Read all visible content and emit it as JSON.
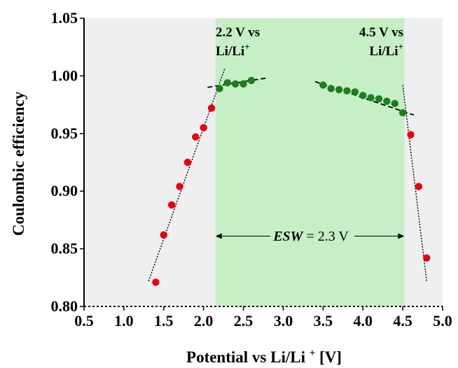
{
  "chart_data": {
    "type": "scatter",
    "xlabel": "Potential vs Li/Li⁺ [V]",
    "ylabel": "Coulombic efficiency",
    "xlim": [
      0.5,
      5.0
    ],
    "ylim": [
      0.8,
      1.05
    ],
    "xticks": [
      "0.5",
      "1.0",
      "1.5",
      "2.0",
      "2.5",
      "3.0",
      "3.5",
      "4.0",
      "4.5",
      "5.0"
    ],
    "yticks": [
      "0.80",
      "0.85",
      "0.90",
      "0.95",
      "1.00",
      "1.05"
    ],
    "grid": false,
    "colors": {
      "background": "#efefef",
      "stable_window": "#c6efc6",
      "red_points": "#e8000b",
      "green_points": "#1e7d1e"
    },
    "stable_window": [
      2.15,
      4.52
    ],
    "series": [
      {
        "color": "#e8000b",
        "points": [
          [
            1.4,
            0.821
          ],
          [
            1.5,
            0.862
          ],
          [
            1.6,
            0.888
          ],
          [
            1.7,
            0.904
          ],
          [
            1.8,
            0.925
          ],
          [
            1.9,
            0.947
          ],
          [
            2.0,
            0.955
          ],
          [
            2.1,
            0.972
          ],
          [
            4.6,
            0.949
          ],
          [
            4.7,
            0.904
          ],
          [
            4.8,
            0.842
          ]
        ]
      },
      {
        "color": "#1e7d1e",
        "points": [
          [
            2.2,
            0.989
          ],
          [
            2.3,
            0.994
          ],
          [
            2.4,
            0.993
          ],
          [
            2.5,
            0.993
          ],
          [
            2.6,
            0.996
          ],
          [
            3.5,
            0.992
          ],
          [
            3.6,
            0.989
          ],
          [
            3.7,
            0.988
          ],
          [
            3.8,
            0.987
          ],
          [
            3.9,
            0.986
          ],
          [
            4.0,
            0.983
          ],
          [
            4.1,
            0.981
          ],
          [
            4.2,
            0.98
          ],
          [
            4.3,
            0.978
          ],
          [
            4.4,
            0.976
          ],
          [
            4.5,
            0.968
          ]
        ]
      }
    ],
    "fit_lines": [
      {
        "style": "dotted",
        "from": [
          1.31,
          0.822
        ],
        "to": [
          2.27,
          1.007
        ]
      },
      {
        "style": "dashed",
        "from": [
          2.05,
          0.99
        ],
        "to": [
          2.78,
          0.998
        ]
      },
      {
        "style": "dashed",
        "from": [
          3.4,
          0.995
        ],
        "to": [
          4.64,
          0.966
        ]
      },
      {
        "style": "dotted",
        "from": [
          4.5,
          0.992
        ],
        "to": [
          4.8,
          0.822
        ]
      }
    ],
    "annotations": {
      "left_cutoff_line1": "2.2 V vs",
      "left_cutoff_line2": "Li/Li",
      "left_cutoff_sup": "+",
      "right_cutoff_line1": "4.5 V vs",
      "right_cutoff_line2": "Li/Li",
      "right_cutoff_sup": "+",
      "esw_label": "ESW",
      "esw_value": " = 2.3 V"
    },
    "esw_arrow": {
      "from": 2.15,
      "to": 4.52,
      "y": 0.861
    }
  }
}
